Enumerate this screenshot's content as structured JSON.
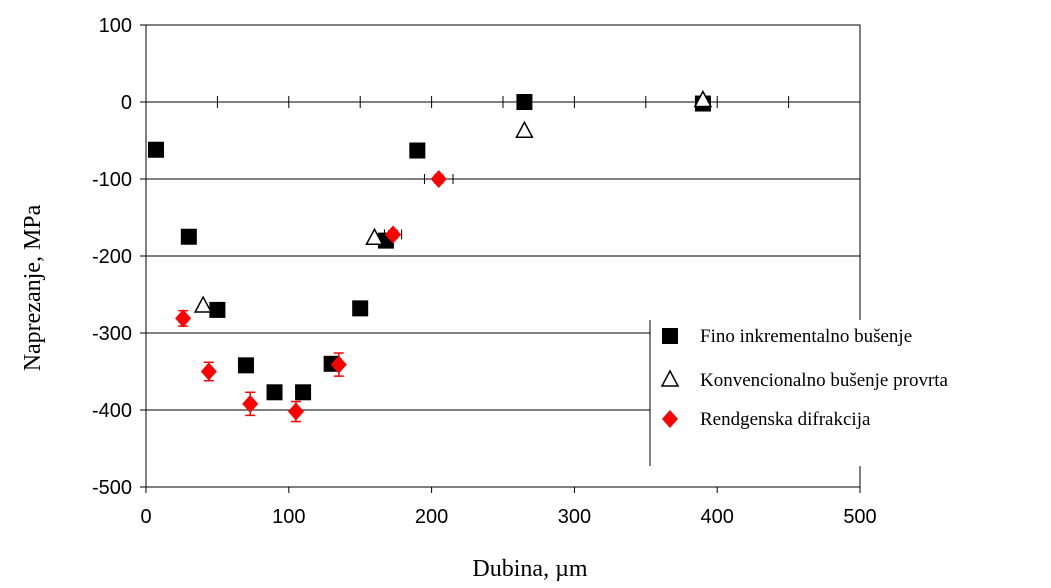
{
  "chart_data": {
    "type": "scatter",
    "title": "",
    "xlabel": "Dubina, µm",
    "ylabel": "Naprezanje, MPa",
    "xlim": [
      0,
      500
    ],
    "ylim": [
      -500,
      100
    ],
    "xticks": [
      0,
      100,
      200,
      300,
      400,
      500
    ],
    "yticks": [
      100,
      0,
      -100,
      -200,
      -300,
      -400,
      -500
    ],
    "xtick_labels": [
      "0",
      "100",
      "200",
      "300",
      "400",
      "500"
    ],
    "ytick_labels": [
      "100",
      "0",
      "-100",
      "-200",
      "-300",
      "-400",
      "-500"
    ],
    "zero_axis_minor_ticks": [
      50,
      100,
      150,
      200,
      250,
      300,
      350,
      400,
      450
    ],
    "grid": "horizontal",
    "legend_position": "right",
    "series": [
      {
        "name": "Fino inkrementalno bušenje",
        "marker": "square",
        "color": "#000000",
        "points": [
          [
            7,
            -62
          ],
          [
            30,
            -175
          ],
          [
            50,
            -270
          ],
          [
            70,
            -342
          ],
          [
            90,
            -377
          ],
          [
            110,
            -377
          ],
          [
            130,
            -340
          ],
          [
            150,
            -268
          ],
          [
            168,
            -180
          ],
          [
            190,
            -63
          ],
          [
            265,
            0
          ],
          [
            390,
            -2
          ]
        ]
      },
      {
        "name": "Konvencionalno bušenje provrta",
        "marker": "triangle-open",
        "color": "#000000",
        "points": [
          [
            40,
            -265
          ],
          [
            160,
            -177
          ],
          [
            265,
            -38
          ],
          [
            390,
            2
          ]
        ]
      },
      {
        "name": "Rendgenska difrakcija",
        "marker": "diamond",
        "color": "#ff0000",
        "points": [
          [
            26,
            -281
          ],
          [
            44,
            -350
          ],
          [
            73,
            -392
          ],
          [
            105,
            -402
          ],
          [
            135,
            -341
          ],
          [
            173,
            -172
          ],
          [
            205,
            -100
          ]
        ],
        "y_error": [
          10,
          12,
          15,
          13,
          15,
          5,
          5
        ],
        "x_error": [
          0,
          0,
          0,
          0,
          0,
          6,
          10
        ]
      }
    ]
  }
}
